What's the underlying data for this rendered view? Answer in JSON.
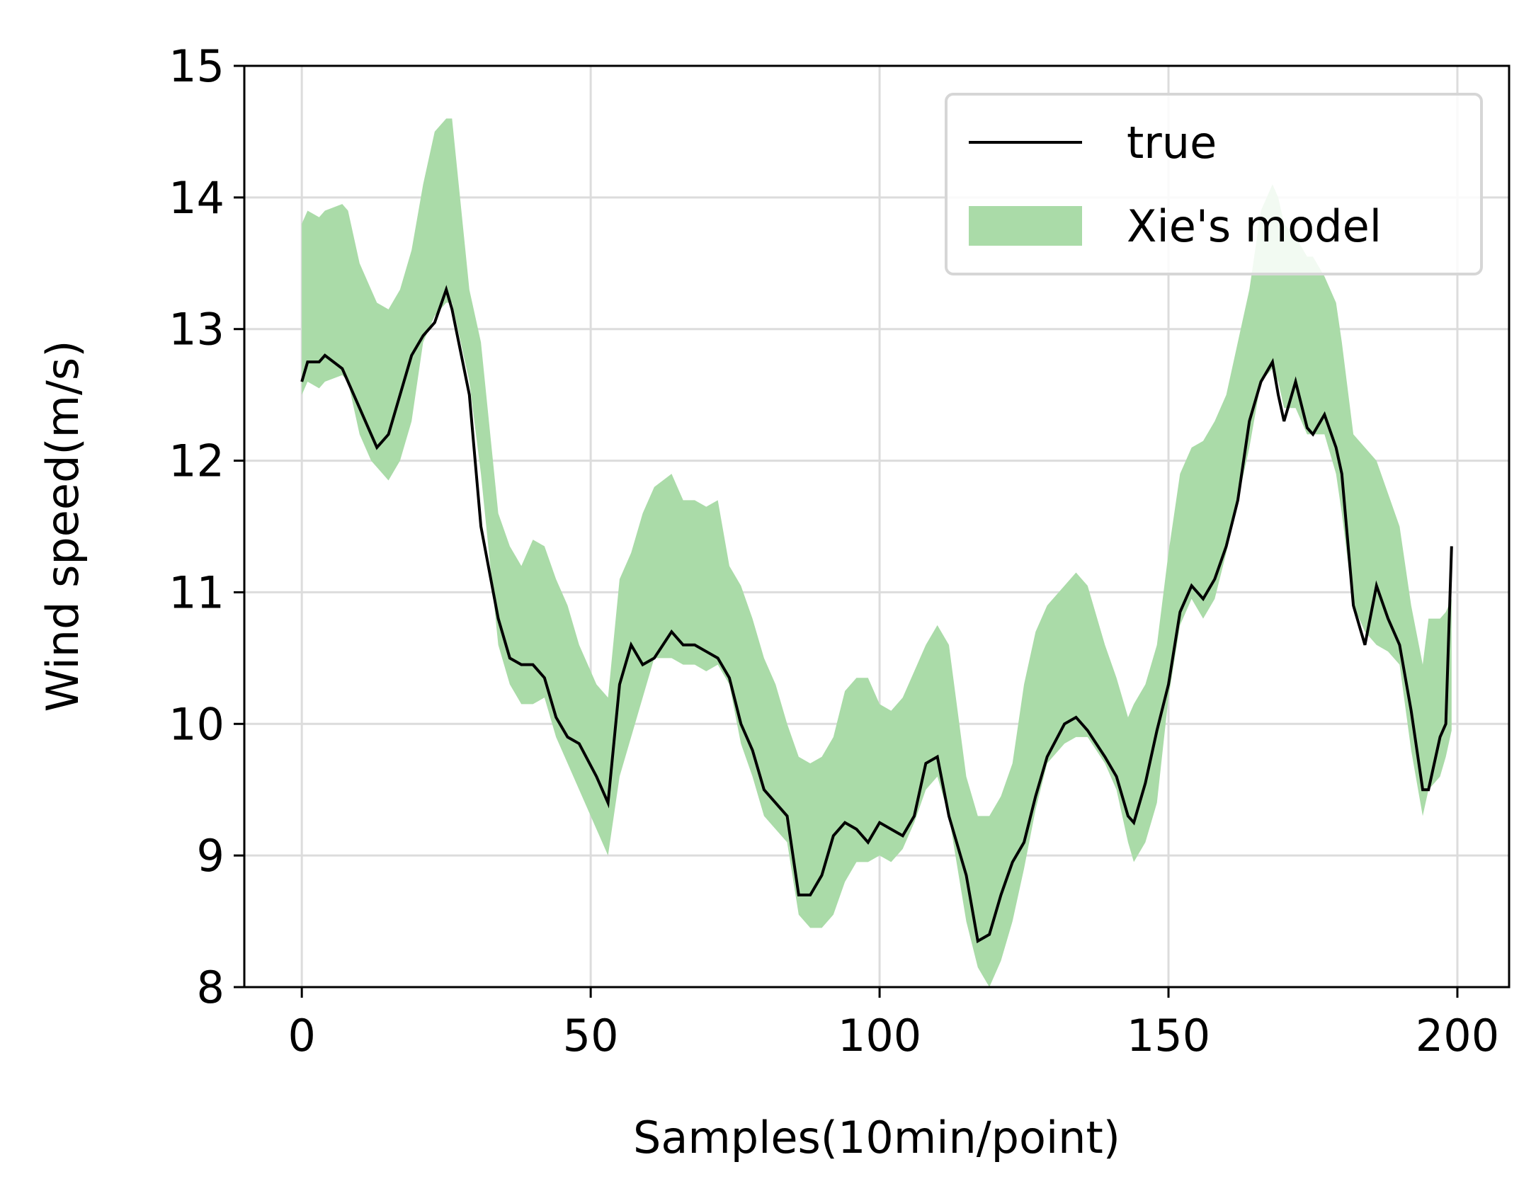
{
  "chart_data": {
    "type": "line",
    "xlabel": "Samples(10min/point)",
    "ylabel": "Wind speed(m/s)",
    "x": [
      0,
      1,
      3,
      4,
      7,
      8,
      10,
      12,
      13,
      15,
      17,
      19,
      21,
      23,
      25,
      26,
      29,
      31,
      34,
      36,
      38,
      40,
      42,
      44,
      46,
      48,
      51,
      53,
      55,
      57,
      59,
      61,
      64,
      66,
      68,
      70,
      72,
      74,
      76,
      78,
      80,
      82,
      84,
      86,
      88,
      90,
      92,
      94,
      96,
      98,
      100,
      102,
      104,
      106,
      108,
      110,
      112,
      115,
      117,
      119,
      121,
      123,
      125,
      127,
      129,
      132,
      134,
      136,
      139,
      141,
      143,
      144,
      146,
      148,
      150,
      152,
      154,
      156,
      158,
      160,
      162,
      164,
      166,
      168,
      169,
      170,
      172,
      174,
      175,
      177,
      179,
      180,
      182,
      184,
      186,
      188,
      190,
      192,
      194,
      195,
      197,
      198,
      199
    ],
    "series": [
      {
        "name": "true",
        "color": "#000000",
        "values": [
          12.6,
          12.75,
          12.75,
          12.8,
          12.7,
          12.6,
          12.4,
          12.2,
          12.1,
          12.2,
          12.5,
          12.8,
          12.95,
          13.05,
          13.3,
          13.15,
          12.5,
          11.5,
          10.8,
          10.5,
          10.45,
          10.45,
          10.35,
          10.05,
          9.9,
          9.85,
          9.6,
          9.4,
          10.3,
          10.6,
          10.45,
          10.5,
          10.7,
          10.6,
          10.6,
          10.55,
          10.5,
          10.35,
          10.0,
          9.8,
          9.5,
          9.4,
          9.3,
          8.7,
          8.7,
          8.85,
          9.15,
          9.25,
          9.2,
          9.1,
          9.25,
          9.2,
          9.15,
          9.3,
          9.7,
          9.75,
          9.3,
          8.85,
          8.35,
          8.4,
          8.7,
          8.95,
          9.1,
          9.45,
          9.75,
          10.0,
          10.05,
          9.95,
          9.75,
          9.6,
          9.3,
          9.25,
          9.55,
          9.95,
          10.3,
          10.85,
          11.05,
          10.95,
          11.1,
          11.35,
          11.7,
          12.3,
          12.6,
          12.75,
          12.5,
          12.3,
          12.6,
          12.25,
          12.2,
          12.35,
          12.1,
          11.9,
          10.9,
          10.6,
          11.05,
          10.8,
          10.6,
          10.1,
          9.5,
          9.5,
          9.9,
          10.0,
          11.35
        ]
      },
      {
        "name": "Xie's model",
        "color": "#aadba8",
        "lower": [
          12.5,
          12.6,
          12.55,
          12.6,
          12.65,
          12.6,
          12.2,
          12.0,
          11.95,
          11.85,
          12.0,
          12.3,
          12.9,
          13.1,
          13.2,
          13.2,
          12.6,
          11.9,
          10.6,
          10.3,
          10.15,
          10.15,
          10.2,
          9.9,
          9.7,
          9.5,
          9.2,
          9.0,
          9.6,
          9.9,
          10.2,
          10.5,
          10.5,
          10.45,
          10.45,
          10.4,
          10.45,
          10.3,
          9.85,
          9.6,
          9.3,
          9.2,
          9.1,
          8.55,
          8.45,
          8.45,
          8.55,
          8.8,
          8.95,
          8.95,
          9.0,
          8.95,
          9.05,
          9.25,
          9.5,
          9.6,
          9.3,
          8.5,
          8.15,
          8.0,
          8.2,
          8.5,
          8.9,
          9.35,
          9.7,
          9.85,
          9.9,
          9.9,
          9.7,
          9.5,
          9.1,
          8.95,
          9.1,
          9.4,
          10.2,
          10.75,
          10.95,
          10.8,
          10.95,
          11.3,
          11.7,
          12.1,
          12.6,
          12.7,
          12.6,
          12.4,
          12.4,
          12.2,
          12.2,
          12.2,
          11.9,
          11.6,
          10.9,
          10.7,
          10.6,
          10.55,
          10.45,
          9.8,
          9.3,
          9.5,
          9.6,
          9.75,
          9.95
        ],
        "upper": [
          13.8,
          13.9,
          13.85,
          13.9,
          13.95,
          13.9,
          13.5,
          13.3,
          13.2,
          13.15,
          13.3,
          13.6,
          14.1,
          14.5,
          14.6,
          14.6,
          13.3,
          12.9,
          11.6,
          11.35,
          11.2,
          11.4,
          11.35,
          11.1,
          10.9,
          10.6,
          10.3,
          10.2,
          11.1,
          11.3,
          11.6,
          11.8,
          11.9,
          11.7,
          11.7,
          11.65,
          11.7,
          11.2,
          11.05,
          10.8,
          10.5,
          10.3,
          10.0,
          9.75,
          9.7,
          9.75,
          9.9,
          10.25,
          10.35,
          10.35,
          10.15,
          10.1,
          10.2,
          10.4,
          10.6,
          10.75,
          10.6,
          9.6,
          9.3,
          9.3,
          9.45,
          9.7,
          10.3,
          10.7,
          10.9,
          11.05,
          11.15,
          11.05,
          10.6,
          10.35,
          10.05,
          10.15,
          10.3,
          10.6,
          11.3,
          11.9,
          12.1,
          12.15,
          12.3,
          12.5,
          12.9,
          13.3,
          13.9,
          14.1,
          14.0,
          13.8,
          13.7,
          13.55,
          13.55,
          13.4,
          13.2,
          12.9,
          12.2,
          12.1,
          12.0,
          11.75,
          11.5,
          10.9,
          10.45,
          10.8,
          10.8,
          10.85,
          10.95
        ]
      }
    ],
    "xlim": [
      -9.95,
      208.95
    ],
    "ylim": [
      8,
      15
    ],
    "xticks": [
      0,
      50,
      100,
      150,
      200
    ],
    "yticks": [
      8,
      9,
      10,
      11,
      12,
      13,
      14,
      15
    ],
    "grid": true,
    "legend": "upper right"
  }
}
